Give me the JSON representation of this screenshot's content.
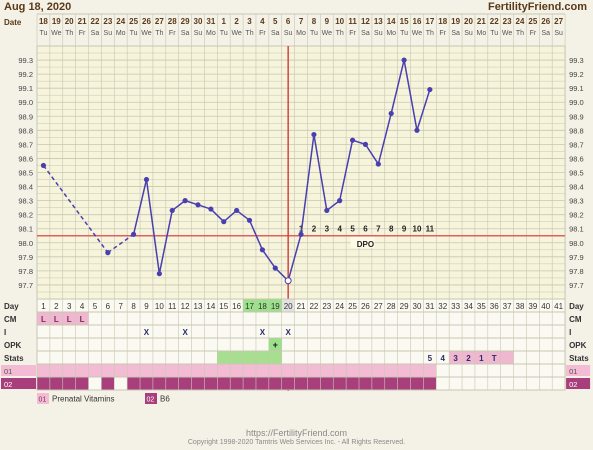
{
  "header": {
    "date": "Aug 18, 2020",
    "site": "FertilityFriend.com"
  },
  "row_labels": {
    "date": "Date",
    "day": "Day",
    "cm": "CM",
    "intercourse": "I",
    "opk": "OPK",
    "stats": "Stats",
    "med1": "01",
    "med2": "02"
  },
  "dates": [
    "18",
    "19",
    "20",
    "21",
    "22",
    "23",
    "24",
    "25",
    "26",
    "27",
    "28",
    "29",
    "30",
    "31",
    "1",
    "2",
    "3",
    "4",
    "5",
    "6",
    "7",
    "8",
    "9",
    "10",
    "11",
    "12",
    "13",
    "14",
    "15",
    "16",
    "17",
    "18",
    "19",
    "20",
    "21",
    "22",
    "23",
    "24",
    "25",
    "26",
    "27"
  ],
  "weekdays": [
    "Tu",
    "We",
    "Th",
    "Fr",
    "Sa",
    "Su",
    "Mo",
    "Tu",
    "We",
    "Th",
    "Fr",
    "Sa",
    "Su",
    "Mo",
    "Tu",
    "We",
    "Th",
    "Fr",
    "Sa",
    "Su",
    "Mo",
    "Tu",
    "We",
    "Th",
    "Fr",
    "Sa",
    "Su",
    "Mo",
    "Tu",
    "We",
    "Th",
    "Fr",
    "Sa",
    "Su",
    "Mo",
    "Tu",
    "We",
    "Th",
    "Fr",
    "Sa",
    "Su"
  ],
  "cm": {
    "labels": [
      "L",
      "L",
      "L",
      "L"
    ],
    "days": [
      1,
      2,
      3,
      4
    ],
    "color": "#f0b8d0"
  },
  "intercourse": {
    "mark": "X",
    "days": [
      9,
      12,
      18,
      20
    ]
  },
  "opk": {
    "mark": "+",
    "day": 19,
    "color": "#9be08a"
  },
  "stats": {
    "highlight_days": [
      15,
      16,
      17,
      18,
      19
    ],
    "highlight_color": "#a8de8f",
    "labels": [
      "5",
      "4",
      "3",
      "2",
      "1",
      "T"
    ],
    "label_days": [
      31,
      32,
      33,
      34,
      35,
      36
    ],
    "count_color": "#f0b8d0"
  },
  "dpo": {
    "label": "DPO",
    "numbers": [
      "1",
      "2",
      "3",
      "4",
      "5",
      "6",
      "7",
      "8",
      "9",
      "10",
      "11"
    ]
  },
  "meds": {
    "med1_color": "#f3bcd4",
    "med2_color": "#a83f7c",
    "med2_gaps": [
      5,
      7
    ]
  },
  "legend": [
    {
      "code": "01",
      "label": "Prenatal Vitamins",
      "color": "#f3bcd4"
    },
    {
      "code": "02",
      "label": "B6",
      "color": "#a83f7c"
    }
  ],
  "colors": {
    "line": "#4a3fb0",
    "coverline": "#e06060",
    "ovulation": "#d23a3a",
    "grid": "#c8c6b2",
    "header": "#5a3a1a",
    "green_day": "#9be08a",
    "today": "#e8e8e8"
  },
  "green_days": [
    17,
    18,
    19
  ],
  "footer": {
    "url": "https://FertilityFriend.com",
    "copyright": "Copyright 1998-2020 Tamtris Web Services Inc. - All Rights Reserved."
  },
  "chart_data": {
    "type": "line",
    "title": "",
    "xlabel": "Day",
    "ylabel": "",
    "ylim": [
      97.6,
      99.4
    ],
    "y_ticks": [
      "97.7",
      "97.8",
      "97.9",
      "98.0",
      "98.1",
      "98.2",
      "98.3",
      "98.4",
      "98.5",
      "98.6",
      "98.7",
      "98.8",
      "98.9",
      "99.0",
      "99.1",
      "99.2",
      "99.3"
    ],
    "days": [
      1,
      2,
      3,
      4,
      5,
      6,
      7,
      8,
      9,
      10,
      11,
      12,
      13,
      14,
      15,
      16,
      17,
      18,
      19,
      20,
      21,
      22,
      23,
      24,
      25,
      26,
      27,
      28,
      29,
      30,
      31,
      32,
      33,
      34,
      35,
      36,
      37,
      38,
      39,
      40,
      41
    ],
    "temps": [
      {
        "day": 1,
        "temp": 98.55
      },
      {
        "day": 6,
        "temp": 97.93
      },
      {
        "day": 8,
        "temp": 98.06
      },
      {
        "day": 9,
        "temp": 98.45
      },
      {
        "day": 10,
        "temp": 97.78
      },
      {
        "day": 11,
        "temp": 98.23
      },
      {
        "day": 12,
        "temp": 98.3
      },
      {
        "day": 13,
        "temp": 98.27
      },
      {
        "day": 14,
        "temp": 98.24
      },
      {
        "day": 15,
        "temp": 98.15
      },
      {
        "day": 16,
        "temp": 98.23
      },
      {
        "day": 17,
        "temp": 98.16
      },
      {
        "day": 18,
        "temp": 97.95
      },
      {
        "day": 19,
        "temp": 97.82
      },
      {
        "day": 20,
        "temp": 97.73
      },
      {
        "day": 21,
        "temp": 98.06
      },
      {
        "day": 22,
        "temp": 98.77
      },
      {
        "day": 23,
        "temp": 98.23
      },
      {
        "day": 24,
        "temp": 98.3
      },
      {
        "day": 25,
        "temp": 98.73
      },
      {
        "day": 26,
        "temp": 98.7
      },
      {
        "day": 27,
        "temp": 98.56
      },
      {
        "day": 28,
        "temp": 98.92
      },
      {
        "day": 29,
        "temp": 99.3
      },
      {
        "day": 30,
        "temp": 98.8
      },
      {
        "day": 31,
        "temp": 99.09
      }
    ],
    "dashed_segments": [
      [
        1,
        6
      ]
    ],
    "coverline": 98.05,
    "ovulation_day": 20
  }
}
